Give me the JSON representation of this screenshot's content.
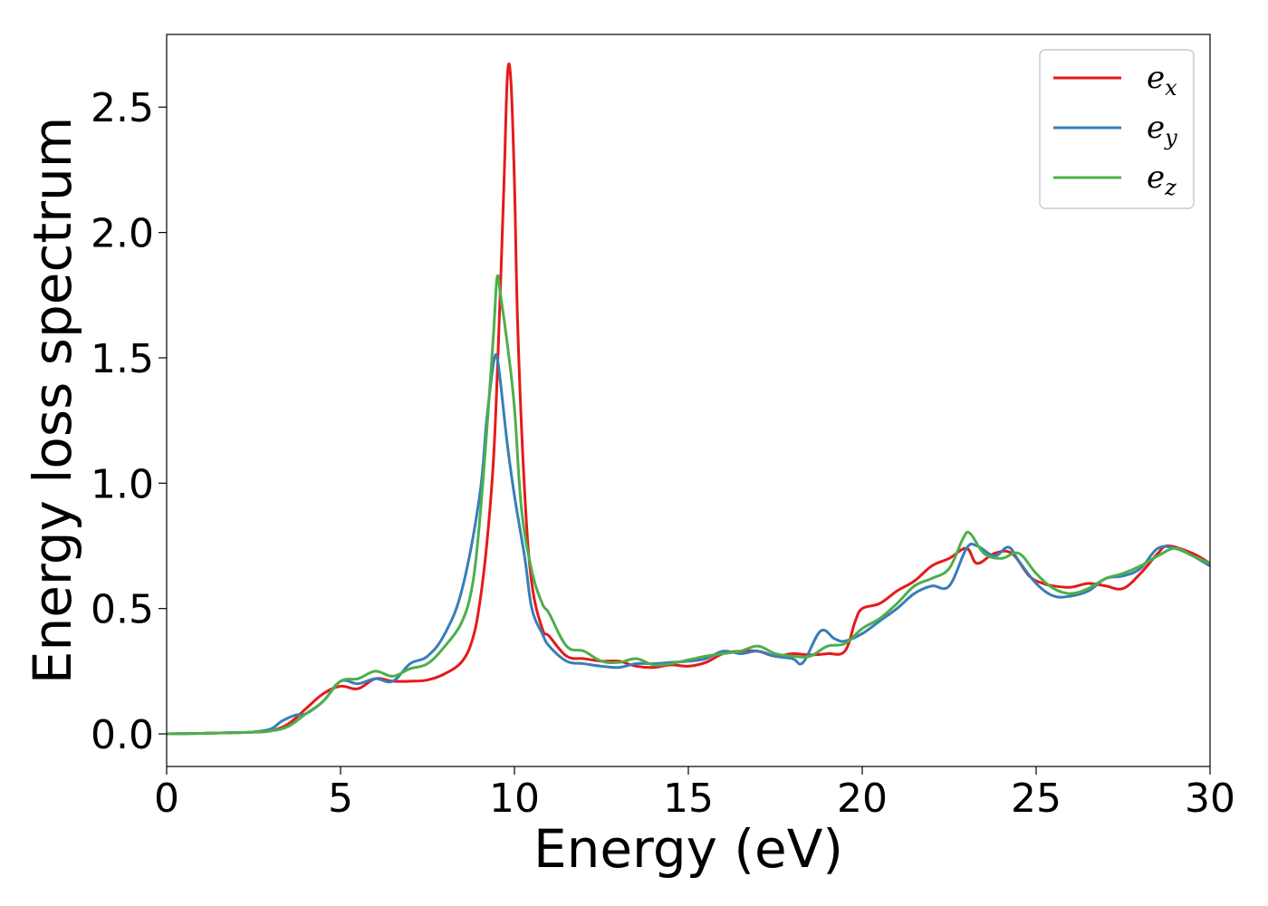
{
  "chart_data": {
    "type": "line",
    "title": "",
    "xlabel": "Energy (eV)",
    "ylabel": "Energy loss spectrum",
    "xlim": [
      0,
      30
    ],
    "ylim": [
      -0.13,
      2.79
    ],
    "xticks": [
      {
        "value": 0,
        "label": "0"
      },
      {
        "value": 5,
        "label": "5"
      },
      {
        "value": 10,
        "label": "10"
      },
      {
        "value": 15,
        "label": "15"
      },
      {
        "value": 20,
        "label": "20"
      },
      {
        "value": 25,
        "label": "25"
      },
      {
        "value": 30,
        "label": "30"
      }
    ],
    "yticks": [
      {
        "value": 0.0,
        "label": "0.0"
      },
      {
        "value": 0.5,
        "label": "0.5"
      },
      {
        "value": 1.0,
        "label": "1.0"
      },
      {
        "value": 1.5,
        "label": "1.5"
      },
      {
        "value": 2.0,
        "label": "2.0"
      },
      {
        "value": 2.5,
        "label": "2.5"
      }
    ],
    "grid": false,
    "legend_position": "top-right",
    "series": [
      {
        "name": "e_x",
        "legend_base": "e",
        "legend_sub": "x",
        "color": "#e41a1c",
        "x": [
          0,
          1,
          2,
          2.5,
          3,
          3.5,
          4,
          4.5,
          5,
          5.5,
          6,
          6.5,
          7,
          7.5,
          8,
          8.5,
          8.8,
          9.0,
          9.2,
          9.4,
          9.55,
          9.7,
          9.8,
          9.9,
          10.0,
          10.1,
          10.3,
          10.5,
          10.8,
          11,
          11.5,
          12,
          12.5,
          13,
          13.5,
          14,
          14.5,
          15,
          15.5,
          16,
          16.5,
          17,
          17.5,
          18,
          18.5,
          19,
          19.5,
          19.8,
          20,
          20.5,
          21,
          21.5,
          22,
          22.5,
          23,
          23.3,
          23.8,
          24.3,
          24.8,
          25.2,
          25.5,
          26,
          26.5,
          27,
          27.5,
          28,
          28.5,
          28.8,
          29.5,
          30
        ],
        "y": [
          0,
          0.002,
          0.005,
          0.007,
          0.012,
          0.04,
          0.1,
          0.16,
          0.19,
          0.18,
          0.22,
          0.21,
          0.21,
          0.215,
          0.24,
          0.29,
          0.38,
          0.52,
          0.75,
          1.1,
          1.6,
          2.2,
          2.63,
          2.6,
          2.2,
          1.6,
          0.95,
          0.6,
          0.42,
          0.39,
          0.31,
          0.3,
          0.29,
          0.29,
          0.27,
          0.265,
          0.275,
          0.27,
          0.285,
          0.32,
          0.33,
          0.33,
          0.31,
          0.32,
          0.315,
          0.32,
          0.33,
          0.45,
          0.5,
          0.52,
          0.57,
          0.61,
          0.67,
          0.7,
          0.74,
          0.68,
          0.72,
          0.72,
          0.63,
          0.6,
          0.59,
          0.585,
          0.6,
          0.59,
          0.58,
          0.64,
          0.72,
          0.75,
          0.72,
          0.68
        ]
      },
      {
        "name": "e_y",
        "legend_base": "e",
        "legend_sub": "y",
        "color": "#377eb8",
        "x": [
          0,
          1,
          2,
          2.5,
          3,
          3.3,
          3.7,
          4,
          4.5,
          5,
          5.5,
          6,
          6.5,
          7,
          7.5,
          8,
          8.5,
          9.0,
          9.2,
          9.4,
          9.5,
          9.6,
          9.8,
          10,
          10.3,
          10.5,
          10.8,
          11,
          11.5,
          12,
          12.5,
          13,
          13.5,
          14,
          14.5,
          15,
          15.5,
          16,
          16.5,
          17,
          17.5,
          18,
          18.3,
          18.8,
          19.2,
          19.5,
          20,
          20.5,
          21,
          21.5,
          22,
          22.5,
          23,
          23.3,
          23.8,
          24.2,
          24.5,
          25,
          25.5,
          26,
          26.5,
          27,
          27.5,
          28,
          28.5,
          29,
          29.5,
          30
        ],
        "y": [
          0,
          0.002,
          0.005,
          0.008,
          0.02,
          0.05,
          0.075,
          0.08,
          0.13,
          0.21,
          0.2,
          0.22,
          0.21,
          0.28,
          0.31,
          0.4,
          0.58,
          0.95,
          1.25,
          1.48,
          1.5,
          1.4,
          1.15,
          0.95,
          0.7,
          0.5,
          0.4,
          0.35,
          0.29,
          0.28,
          0.27,
          0.265,
          0.28,
          0.28,
          0.285,
          0.29,
          0.3,
          0.33,
          0.32,
          0.33,
          0.31,
          0.3,
          0.285,
          0.41,
          0.38,
          0.37,
          0.4,
          0.45,
          0.5,
          0.56,
          0.59,
          0.59,
          0.74,
          0.75,
          0.71,
          0.745,
          0.69,
          0.6,
          0.55,
          0.55,
          0.57,
          0.62,
          0.63,
          0.66,
          0.74,
          0.74,
          0.71,
          0.67
        ]
      },
      {
        "name": "e_z",
        "legend_base": "e",
        "legend_sub": "z",
        "color": "#4daf4a",
        "x": [
          0,
          1,
          2,
          2.5,
          3,
          3.5,
          4,
          4.5,
          5,
          5.5,
          6,
          6.5,
          7,
          7.5,
          8,
          8.5,
          8.8,
          9.0,
          9.2,
          9.4,
          9.5,
          9.6,
          9.8,
          10,
          10.2,
          10.5,
          10.8,
          11,
          11.5,
          12,
          12.5,
          13,
          13.5,
          14,
          14.5,
          15,
          15.5,
          16,
          16.5,
          17,
          17.5,
          18,
          18.5,
          19,
          19.5,
          20,
          20.5,
          21,
          21.5,
          22,
          22.5,
          22.9,
          23.1,
          23.5,
          24,
          24.5,
          25,
          25.5,
          26,
          26.5,
          27,
          27.5,
          28,
          28.5,
          29,
          29.5,
          30
        ],
        "y": [
          0,
          0.002,
          0.005,
          0.007,
          0.012,
          0.03,
          0.08,
          0.13,
          0.21,
          0.22,
          0.25,
          0.23,
          0.26,
          0.28,
          0.35,
          0.45,
          0.6,
          0.85,
          1.2,
          1.6,
          1.82,
          1.75,
          1.55,
          1.3,
          0.9,
          0.65,
          0.52,
          0.48,
          0.35,
          0.33,
          0.29,
          0.285,
          0.3,
          0.275,
          0.28,
          0.295,
          0.31,
          0.32,
          0.33,
          0.35,
          0.32,
          0.31,
          0.31,
          0.35,
          0.36,
          0.42,
          0.46,
          0.52,
          0.59,
          0.62,
          0.66,
          0.78,
          0.8,
          0.72,
          0.7,
          0.72,
          0.64,
          0.58,
          0.56,
          0.58,
          0.62,
          0.64,
          0.67,
          0.71,
          0.74,
          0.71,
          0.68
        ]
      }
    ]
  }
}
